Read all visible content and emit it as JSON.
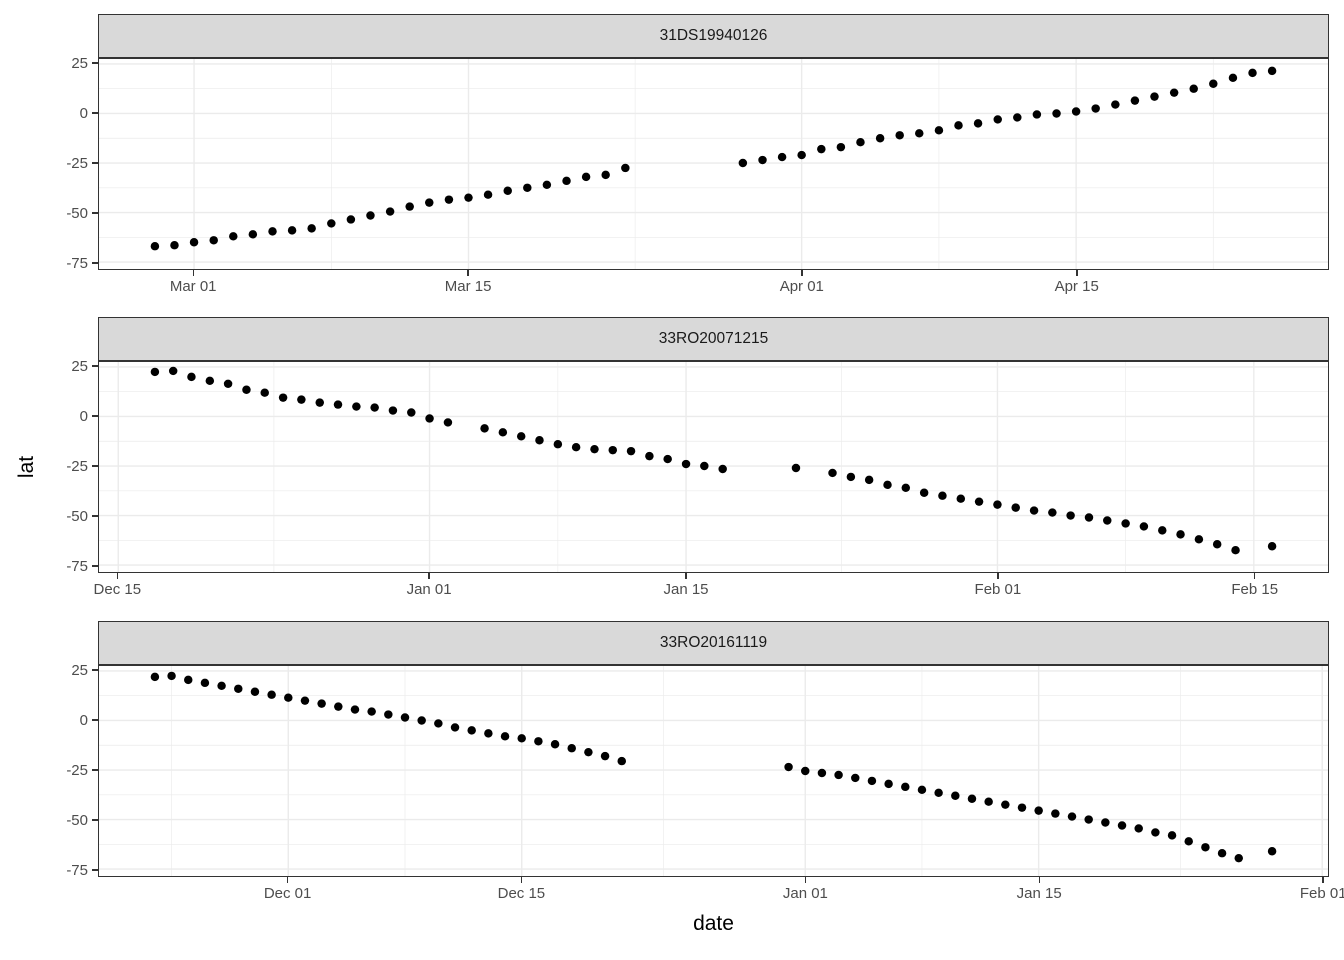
{
  "chart_data": {
    "type": "scatter",
    "title": "",
    "xlabel": "date",
    "ylabel": "lat",
    "grid": true,
    "legend": "none",
    "y_ticks": [
      25,
      0,
      -25,
      -50,
      -75
    ],
    "y_domain": [
      -78.5,
      27.5
    ],
    "point_color": "#000000",
    "colors": {
      "strip_background": "#d9d9d9",
      "panel_border": "#333333",
      "gridline": "#ebebeb",
      "axis_text": "#4d4d4d",
      "point": "#000000"
    },
    "facets": [
      {
        "facet": "31DS19940126",
        "x_domain": [
          -2.85,
          59.85
        ],
        "x_ticks": [
          {
            "label": "Mar 01",
            "day": 2
          },
          {
            "label": "Mar 15",
            "day": 16
          },
          {
            "label": "Apr 01",
            "day": 33
          },
          {
            "label": "Apr 15",
            "day": 47
          }
        ],
        "points": {
          "dates": [
            "Feb 27",
            "Feb 28",
            "Mar 01",
            "Mar 02",
            "Mar 03",
            "Mar 04",
            "Mar 05",
            "Mar 06",
            "Mar 07",
            "Mar 08",
            "Mar 09",
            "Mar 10",
            "Mar 11",
            "Mar 12",
            "Mar 13",
            "Mar 14",
            "Mar 15",
            "Mar 16",
            "Mar 17",
            "Mar 18",
            "Mar 19",
            "Mar 20",
            "Mar 21",
            "Mar 22",
            "Mar 23",
            "Mar 29",
            "Mar 30",
            "Mar 31",
            "Apr 01",
            "Apr 02",
            "Apr 03",
            "Apr 04",
            "Apr 05",
            "Apr 06",
            "Apr 07",
            "Apr 08",
            "Apr 09",
            "Apr 10",
            "Apr 11",
            "Apr 12",
            "Apr 13",
            "Apr 14",
            "Apr 15",
            "Apr 16",
            "Apr 17",
            "Apr 18",
            "Apr 19",
            "Apr 20",
            "Apr 21",
            "Apr 22",
            "Apr 23",
            "Apr 24",
            "Apr 25"
          ],
          "days": [
            0,
            1,
            2,
            3,
            4,
            5,
            6,
            7,
            8,
            9,
            10,
            11,
            12,
            13,
            14,
            15,
            16,
            17,
            18,
            19,
            20,
            21,
            22,
            23,
            24,
            30,
            31,
            32,
            33,
            34,
            35,
            36,
            37,
            38,
            39,
            40,
            41,
            42,
            43,
            44,
            45,
            46,
            47,
            48,
            49,
            50,
            51,
            52,
            53,
            54,
            55,
            56,
            57
          ],
          "lats": [
            -67,
            -66.5,
            -65,
            -64,
            -62,
            -61,
            -59.5,
            -59,
            -58,
            -55.5,
            -53.5,
            -51.5,
            -49.5,
            -47,
            -45,
            -43.5,
            -42.5,
            -41,
            -39,
            -37.5,
            -36,
            -34,
            -32,
            -31,
            -27.5,
            -25,
            -23.5,
            -22,
            -21,
            -18,
            -17,
            -14.5,
            -12.5,
            -11,
            -10,
            -8.5,
            -6,
            -5,
            -3,
            -2,
            -0.5,
            0,
            1,
            2.5,
            4.5,
            6.5,
            8.5,
            10.5,
            12.5,
            15,
            18,
            20.5,
            21.5
          ]
        }
      },
      {
        "facet": "33RO20071215",
        "x_domain": [
          -3.05,
          64.05
        ],
        "x_ticks": [
          {
            "label": "Dec 15",
            "day": -2
          },
          {
            "label": "Jan 01",
            "day": 15
          },
          {
            "label": "Jan 15",
            "day": 29
          },
          {
            "label": "Feb 01",
            "day": 46
          },
          {
            "label": "Feb 15",
            "day": 60
          }
        ],
        "points": {
          "dates": [
            "Dec 17",
            "Dec 18",
            "Dec 19",
            "Dec 20",
            "Dec 21",
            "Dec 22",
            "Dec 23",
            "Dec 24",
            "Dec 25",
            "Dec 26",
            "Dec 27",
            "Dec 28",
            "Dec 29",
            "Dec 30",
            "Dec 31",
            "Jan 01",
            "Jan 02",
            "Jan 04",
            "Jan 05",
            "Jan 06",
            "Jan 07",
            "Jan 08",
            "Jan 09",
            "Jan 10",
            "Jan 11",
            "Jan 12",
            "Jan 13",
            "Jan 14",
            "Jan 15",
            "Jan 16",
            "Jan 17",
            "Jan 21",
            "Jan 23",
            "Jan 24",
            "Jan 25",
            "Jan 26",
            "Jan 27",
            "Jan 28",
            "Jan 29",
            "Jan 30",
            "Jan 31",
            "Feb 01",
            "Feb 02",
            "Feb 03",
            "Feb 04",
            "Feb 05",
            "Feb 06",
            "Feb 07",
            "Feb 08",
            "Feb 09",
            "Feb 10",
            "Feb 11",
            "Feb 12",
            "Feb 13",
            "Feb 14",
            "Feb 16"
          ],
          "days": [
            0,
            1,
            2,
            3,
            4,
            5,
            6,
            7,
            8,
            9,
            10,
            11,
            12,
            13,
            14,
            15,
            16,
            18,
            19,
            20,
            21,
            22,
            23,
            24,
            25,
            26,
            27,
            28,
            29,
            30,
            31,
            35,
            37,
            38,
            39,
            40,
            41,
            42,
            43,
            44,
            45,
            46,
            47,
            48,
            49,
            50,
            51,
            52,
            53,
            54,
            55,
            56,
            57,
            58,
            59,
            61
          ],
          "lats": [
            22.5,
            23,
            20,
            18,
            16.5,
            13.5,
            12,
            9.5,
            8.5,
            7,
            6,
            5,
            4.5,
            3,
            2,
            -1,
            -3,
            -6,
            -8,
            -10,
            -12,
            -14,
            -15.5,
            -16.5,
            -17,
            -17.5,
            -20,
            -21.5,
            -24,
            -25,
            -26.5,
            -26,
            -28.5,
            -30.5,
            -32,
            -34.5,
            -36,
            -38.5,
            -40,
            -41.5,
            -43,
            -44.5,
            -46,
            -47.5,
            -48.5,
            -50,
            -51,
            -52.5,
            -54,
            -55.5,
            -57.5,
            -59.5,
            -62,
            -64.5,
            -67.5,
            -65.5
          ]
        }
      },
      {
        "facet": "33RO20161119",
        "x_domain": [
          -3.35,
          70.35
        ],
        "x_ticks": [
          {
            "label": "Dec 01",
            "day": 8
          },
          {
            "label": "Dec 15",
            "day": 22
          },
          {
            "label": "Jan 01",
            "day": 39
          },
          {
            "label": "Jan 15",
            "day": 53
          },
          {
            "label": "Feb 01",
            "day": 70
          }
        ],
        "points": {
          "dates": [
            "Nov 23",
            "Nov 24",
            "Nov 25",
            "Nov 26",
            "Nov 27",
            "Nov 28",
            "Nov 29",
            "Nov 30",
            "Dec 01",
            "Dec 02",
            "Dec 03",
            "Dec 04",
            "Dec 05",
            "Dec 06",
            "Dec 07",
            "Dec 08",
            "Dec 09",
            "Dec 10",
            "Dec 11",
            "Dec 12",
            "Dec 13",
            "Dec 14",
            "Dec 15",
            "Dec 16",
            "Dec 17",
            "Dec 18",
            "Dec 19",
            "Dec 20",
            "Dec 21",
            "Dec 31",
            "Jan 01",
            "Jan 02",
            "Jan 03",
            "Jan 04",
            "Jan 05",
            "Jan 06",
            "Jan 07",
            "Jan 08",
            "Jan 09",
            "Jan 10",
            "Jan 11",
            "Jan 12",
            "Jan 13",
            "Jan 14",
            "Jan 15",
            "Jan 16",
            "Jan 17",
            "Jan 18",
            "Jan 19",
            "Jan 20",
            "Jan 21",
            "Jan 22",
            "Jan 23",
            "Jan 24",
            "Jan 25",
            "Jan 26",
            "Jan 27",
            "Jan 29"
          ],
          "days": [
            0,
            1,
            2,
            3,
            4,
            5,
            6,
            7,
            8,
            9,
            10,
            11,
            12,
            13,
            14,
            15,
            16,
            17,
            18,
            19,
            20,
            21,
            22,
            23,
            24,
            25,
            26,
            27,
            28,
            38,
            39,
            40,
            41,
            42,
            43,
            44,
            45,
            46,
            47,
            48,
            49,
            50,
            51,
            52,
            53,
            54,
            55,
            56,
            57,
            58,
            59,
            60,
            61,
            62,
            63,
            64,
            65,
            67
          ],
          "lats": [
            22,
            22.5,
            20.5,
            19,
            17.5,
            16,
            14.5,
            13,
            11.5,
            10,
            8.5,
            7,
            5.5,
            4.5,
            3,
            1.5,
            0,
            -1.5,
            -3.5,
            -5,
            -6.5,
            -8,
            -9,
            -10.5,
            -12,
            -14,
            -16,
            -18,
            -20.5,
            -23.5,
            -25.5,
            -26.5,
            -27.5,
            -29,
            -30.5,
            -32,
            -33.5,
            -35,
            -36.5,
            -38,
            -39.5,
            -41,
            -42.5,
            -44,
            -45.5,
            -47,
            -48.5,
            -50,
            -51.5,
            -53,
            -54.5,
            -56.5,
            -58,
            -61,
            -64,
            -67,
            -69.5,
            -66
          ]
        }
      }
    ]
  }
}
